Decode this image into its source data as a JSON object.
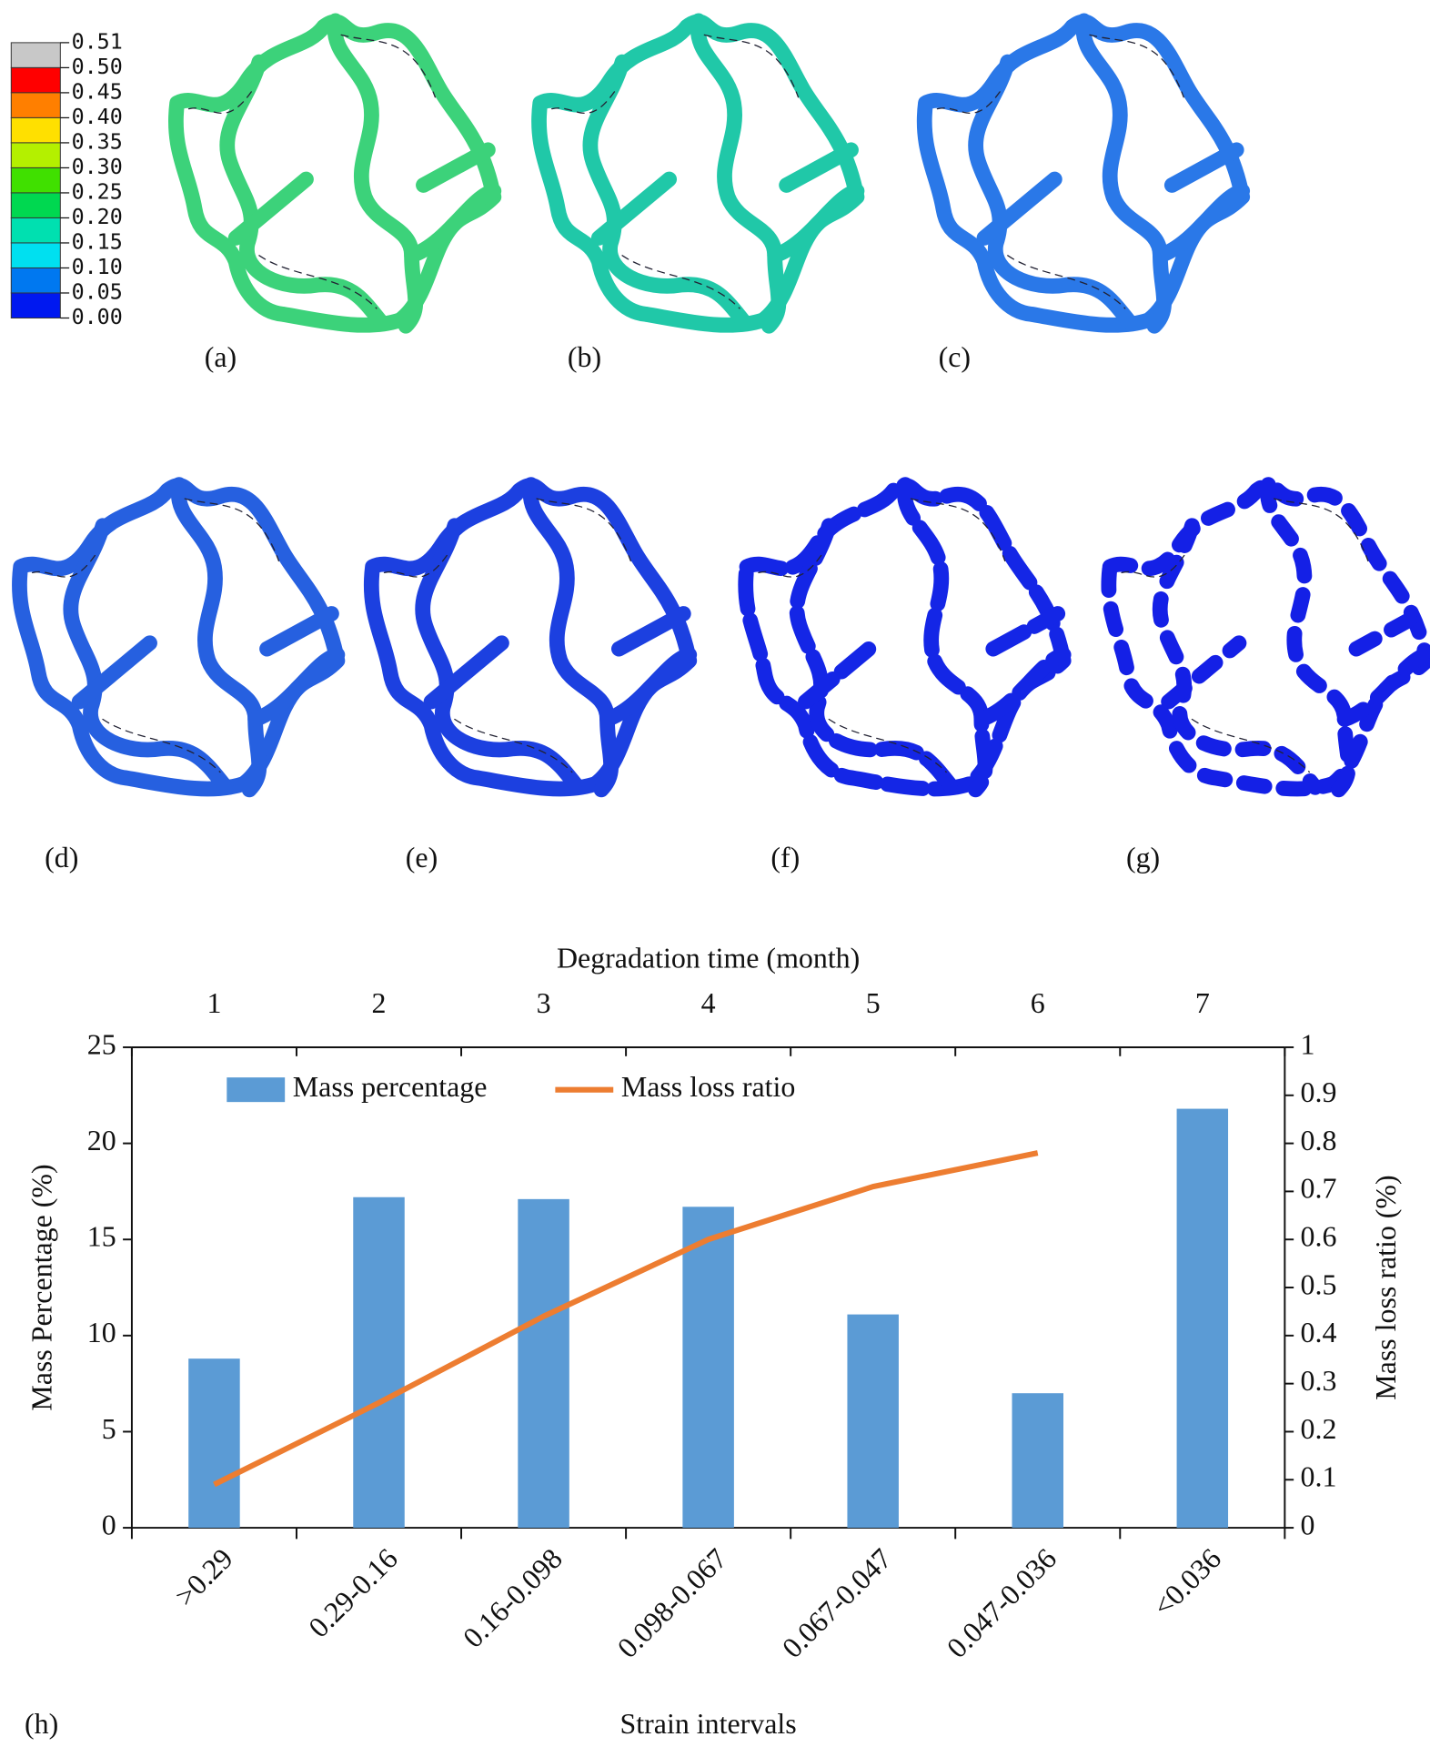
{
  "contour_legend": {
    "labels": [
      "0.51",
      "0.50",
      "0.45",
      "0.40",
      "0.35",
      "0.30",
      "0.25",
      "0.20",
      "0.15",
      "0.10",
      "0.05",
      "0.00"
    ],
    "colors": [
      "#c8c8c8",
      "#ff0000",
      "#ff7f00",
      "#ffe000",
      "#b4f000",
      "#40e000",
      "#00d850",
      "#00e0b0",
      "#00e0f0",
      "#0078f0",
      "#0018f0"
    ]
  },
  "panels": [
    {
      "label": "(a)",
      "color": "#3cd27a"
    },
    {
      "label": "(b)",
      "color": "#20c8a8"
    },
    {
      "label": "(c)",
      "color": "#2a78e8"
    },
    {
      "label": "(d)",
      "color": "#2660e0"
    },
    {
      "label": "(e)",
      "color": "#1c40e0"
    },
    {
      "label": "(f)",
      "color": "#1426e6"
    },
    {
      "label": "(g)",
      "color": "#1420e6"
    }
  ],
  "chart_data": {
    "type": "combo",
    "panel_label": "(h)",
    "x_label": "Strain intervals",
    "y_label": "Mass Percentage (%)",
    "y2_label": "Mass loss ratio (%)",
    "top_axis_label": "Degradation time (month)",
    "top_ticks": [
      1,
      2,
      3,
      4,
      5,
      6,
      7
    ],
    "categories": [
      ">0.29",
      "0.29-0.16",
      "0.16-0.098",
      "0.098-0.067",
      "0.067-0.047",
      "0.047-0.036",
      "<0.036"
    ],
    "series": [
      {
        "name": "Mass percentage",
        "type": "bar",
        "color": "#5b9bd5",
        "values": [
          8.8,
          17.2,
          17.1,
          16.7,
          11.1,
          7.0,
          21.8
        ]
      },
      {
        "name": "Mass loss ratio",
        "type": "line",
        "axis": "y2",
        "color": "#ed7d31",
        "values": [
          0.09,
          0.26,
          0.44,
          0.6,
          0.71,
          0.78,
          null
        ]
      }
    ],
    "ylim": [
      0,
      25
    ],
    "yticks": [
      0,
      5,
      10,
      15,
      20,
      25
    ],
    "y2lim": [
      0,
      1
    ],
    "y2ticks": [
      0,
      0.1,
      0.2,
      0.3,
      0.4,
      0.5,
      0.6,
      0.7,
      0.8,
      0.9,
      1
    ]
  }
}
